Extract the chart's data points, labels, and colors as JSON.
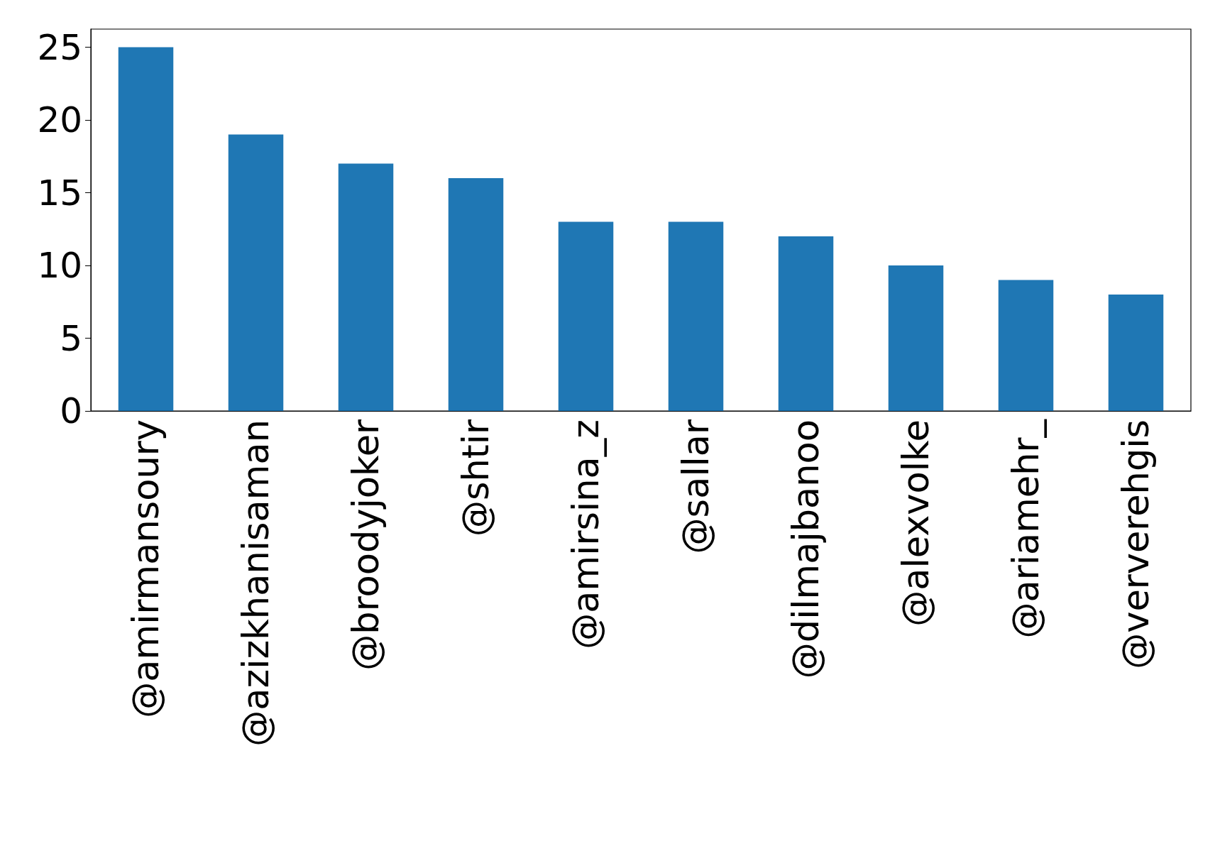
{
  "chart_data": {
    "type": "bar",
    "categories": [
      "@amirmansoury",
      "@azizkhanisaman",
      "@broodyjoker",
      "@shtir",
      "@amirsina_z",
      "@sallar",
      "@dilmajbanoo",
      "@alexvolke",
      "@ariamehr_",
      "@ververehgis"
    ],
    "values": [
      25,
      19,
      17,
      16,
      13,
      13,
      12,
      10,
      9,
      8
    ],
    "color": "#1f77b4",
    "ylim": [
      0,
      26.25
    ],
    "yticks": [
      0,
      5,
      10,
      15,
      20,
      25
    ],
    "grid": false
  }
}
